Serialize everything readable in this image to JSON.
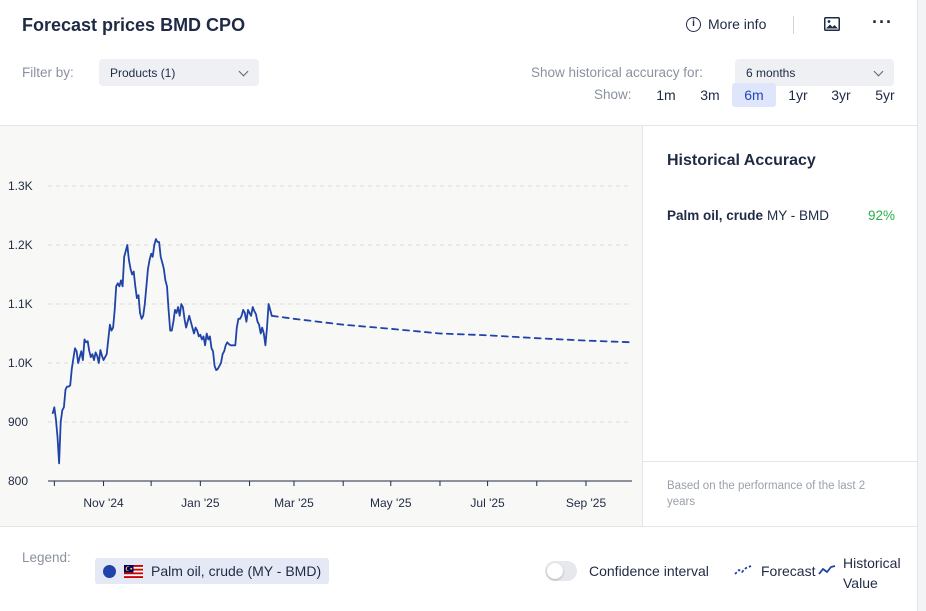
{
  "header": {
    "title": "Forecast prices BMD CPO",
    "more_info": "More info"
  },
  "filters": {
    "filter_by_label": "Filter by:",
    "products_value": "Products (1)",
    "accuracy_label": "Show historical accuracy for:",
    "accuracy_value": "6 months",
    "show_label": "Show:",
    "ranges": [
      "1m",
      "3m",
      "6m",
      "1yr",
      "3yr",
      "5yr"
    ],
    "active_range": "6m"
  },
  "sidebar": {
    "title": "Historical Accuracy",
    "product": "Palm oil, crude",
    "market": "MY - BMD",
    "accuracy": "92%",
    "note": "Based on the performance of the last 2 years"
  },
  "legend": {
    "label": "Legend:",
    "series_name": "Palm oil, crude (MY - BMD)",
    "confidence_label": "Confidence interval",
    "forecast_label": "Forecast",
    "historical_label": "Historical Value"
  },
  "colors": {
    "line": "#1f43a8",
    "accuracy_good": "#27b04b",
    "active_range_bg": "#dfe6fb"
  },
  "chart_data": {
    "type": "line",
    "title": "",
    "xlabel": "",
    "ylabel": "",
    "ylim": [
      800,
      1300
    ],
    "yticks": [
      {
        "value": 800,
        "label": "800"
      },
      {
        "value": 900,
        "label": "900"
      },
      {
        "value": 1000,
        "label": "1.0K"
      },
      {
        "value": 1100,
        "label": "1.1K"
      },
      {
        "value": 1200,
        "label": "1.2K"
      },
      {
        "value": 1300,
        "label": "1.3K"
      }
    ],
    "xlim": [
      "2024-09-27",
      "2025-09-30"
    ],
    "xticks": [
      {
        "date": "2024-11-01",
        "label": "Nov '24"
      },
      {
        "date": "2025-01-01",
        "label": "Jan '25"
      },
      {
        "date": "2025-03-01",
        "label": "Mar '25"
      },
      {
        "date": "2025-05-01",
        "label": "May '25"
      },
      {
        "date": "2025-07-01",
        "label": "Jul '25"
      },
      {
        "date": "2025-09-01",
        "label": "Sep '25"
      }
    ],
    "grid": true,
    "series": [
      {
        "name": "Historical Value",
        "style": "solid",
        "points": [
          [
            "2024-09-30",
            915
          ],
          [
            "2024-10-01",
            925
          ],
          [
            "2024-10-02",
            905
          ],
          [
            "2024-10-03",
            875
          ],
          [
            "2024-10-04",
            830
          ],
          [
            "2024-10-05",
            900
          ],
          [
            "2024-10-06",
            920
          ],
          [
            "2024-10-07",
            925
          ],
          [
            "2024-10-08",
            955
          ],
          [
            "2024-10-09",
            960
          ],
          [
            "2024-10-10",
            960
          ],
          [
            "2024-10-11",
            962
          ],
          [
            "2024-10-12",
            990
          ],
          [
            "2024-10-13",
            1008
          ],
          [
            "2024-10-14",
            1025
          ],
          [
            "2024-10-15",
            1020
          ],
          [
            "2024-10-16",
            1000
          ],
          [
            "2024-10-17",
            1010
          ],
          [
            "2024-10-18",
            1020
          ],
          [
            "2024-10-19",
            1005
          ],
          [
            "2024-10-20",
            1040
          ],
          [
            "2024-10-21",
            1035
          ],
          [
            "2024-10-22",
            1037
          ],
          [
            "2024-10-23",
            1020
          ],
          [
            "2024-10-24",
            1010
          ],
          [
            "2024-10-25",
            1015
          ],
          [
            "2024-10-26",
            1005
          ],
          [
            "2024-10-27",
            1018
          ],
          [
            "2024-10-28",
            1012
          ],
          [
            "2024-10-29",
            1000
          ],
          [
            "2024-10-30",
            1022
          ],
          [
            "2024-10-31",
            1012
          ],
          [
            "2024-11-01",
            1005
          ],
          [
            "2024-11-02",
            1010
          ],
          [
            "2024-11-03",
            1015
          ],
          [
            "2024-11-04",
            1040
          ],
          [
            "2024-11-05",
            1065
          ],
          [
            "2024-11-06",
            1055
          ],
          [
            "2024-11-07",
            1060
          ],
          [
            "2024-11-08",
            1090
          ],
          [
            "2024-11-09",
            1130
          ],
          [
            "2024-11-10",
            1135
          ],
          [
            "2024-11-11",
            1130
          ],
          [
            "2024-11-12",
            1140
          ],
          [
            "2024-11-13",
            1130
          ],
          [
            "2024-11-14",
            1180
          ],
          [
            "2024-11-15",
            1190
          ],
          [
            "2024-11-16",
            1200
          ],
          [
            "2024-11-17",
            1175
          ],
          [
            "2024-11-18",
            1160
          ],
          [
            "2024-11-19",
            1150
          ],
          [
            "2024-11-20",
            1155
          ],
          [
            "2024-11-21",
            1130
          ],
          [
            "2024-11-22",
            1110
          ],
          [
            "2024-11-23",
            1115
          ],
          [
            "2024-11-24",
            1085
          ],
          [
            "2024-11-25",
            1075
          ],
          [
            "2024-11-26",
            1080
          ],
          [
            "2024-11-27",
            1100
          ],
          [
            "2024-11-28",
            1130
          ],
          [
            "2024-11-29",
            1160
          ],
          [
            "2024-11-30",
            1175
          ],
          [
            "2024-12-01",
            1185
          ],
          [
            "2024-12-02",
            1180
          ],
          [
            "2024-12-03",
            1200
          ],
          [
            "2024-12-04",
            1210
          ],
          [
            "2024-12-05",
            1205
          ],
          [
            "2024-12-06",
            1205
          ],
          [
            "2024-12-07",
            1180
          ],
          [
            "2024-12-08",
            1170
          ],
          [
            "2024-12-09",
            1160
          ],
          [
            "2024-12-10",
            1140
          ],
          [
            "2024-12-11",
            1130
          ],
          [
            "2024-12-12",
            1090
          ],
          [
            "2024-12-13",
            1055
          ],
          [
            "2024-12-14",
            1055
          ],
          [
            "2024-12-15",
            1070
          ],
          [
            "2024-12-16",
            1090
          ],
          [
            "2024-12-17",
            1085
          ],
          [
            "2024-12-18",
            1095
          ],
          [
            "2024-12-19",
            1080
          ],
          [
            "2024-12-20",
            1100
          ],
          [
            "2024-12-21",
            1095
          ],
          [
            "2024-12-22",
            1075
          ],
          [
            "2024-12-23",
            1060
          ],
          [
            "2024-12-24",
            1070
          ],
          [
            "2024-12-25",
            1080
          ],
          [
            "2024-12-26",
            1070
          ],
          [
            "2024-12-27",
            1060
          ],
          [
            "2024-12-28",
            1050
          ],
          [
            "2024-12-29",
            1060
          ],
          [
            "2024-12-30",
            1055
          ],
          [
            "2024-12-31",
            1045
          ],
          [
            "2025-01-01",
            1048
          ],
          [
            "2025-01-02",
            1040
          ],
          [
            "2025-01-03",
            1045
          ],
          [
            "2025-01-04",
            1030
          ],
          [
            "2025-01-05",
            1050
          ],
          [
            "2025-01-06",
            1040
          ],
          [
            "2025-01-07",
            1045
          ],
          [
            "2025-01-08",
            1025
          ],
          [
            "2025-01-09",
            1020
          ],
          [
            "2025-01-10",
            995
          ],
          [
            "2025-01-11",
            988
          ],
          [
            "2025-01-12",
            990
          ],
          [
            "2025-01-13",
            995
          ],
          [
            "2025-01-14",
            1000
          ],
          [
            "2025-01-15",
            1015
          ],
          [
            "2025-01-16",
            1020
          ],
          [
            "2025-01-17",
            1030
          ],
          [
            "2025-01-18",
            1035
          ],
          [
            "2025-01-19",
            1032
          ],
          [
            "2025-01-20",
            1030
          ],
          [
            "2025-01-21",
            1030
          ],
          [
            "2025-01-22",
            1030
          ],
          [
            "2025-01-23",
            1030
          ],
          [
            "2025-01-24",
            1060
          ],
          [
            "2025-01-25",
            1075
          ],
          [
            "2025-01-26",
            1075
          ],
          [
            "2025-01-27",
            1080
          ],
          [
            "2025-01-28",
            1090
          ],
          [
            "2025-01-29",
            1085
          ],
          [
            "2025-01-30",
            1070
          ],
          [
            "2025-01-31",
            1090
          ],
          [
            "2025-02-01",
            1085
          ],
          [
            "2025-02-02",
            1080
          ],
          [
            "2025-02-03",
            1095
          ],
          [
            "2025-02-04",
            1088
          ],
          [
            "2025-02-05",
            1083
          ],
          [
            "2025-02-06",
            1070
          ],
          [
            "2025-02-07",
            1065
          ],
          [
            "2025-02-08",
            1050
          ],
          [
            "2025-02-09",
            1060
          ],
          [
            "2025-02-10",
            1050
          ],
          [
            "2025-02-11",
            1030
          ],
          [
            "2025-02-12",
            1060
          ],
          [
            "2025-02-13",
            1100
          ],
          [
            "2025-02-14",
            1090
          ],
          [
            "2025-02-15",
            1080
          ]
        ]
      },
      {
        "name": "Forecast",
        "style": "dashed",
        "points": [
          [
            "2025-02-15",
            1080
          ],
          [
            "2025-03-01",
            1075
          ],
          [
            "2025-04-01",
            1065
          ],
          [
            "2025-05-01",
            1058
          ],
          [
            "2025-06-01",
            1050
          ],
          [
            "2025-07-01",
            1047
          ],
          [
            "2025-08-01",
            1042
          ],
          [
            "2025-09-01",
            1038
          ],
          [
            "2025-09-30",
            1035
          ]
        ]
      }
    ]
  }
}
